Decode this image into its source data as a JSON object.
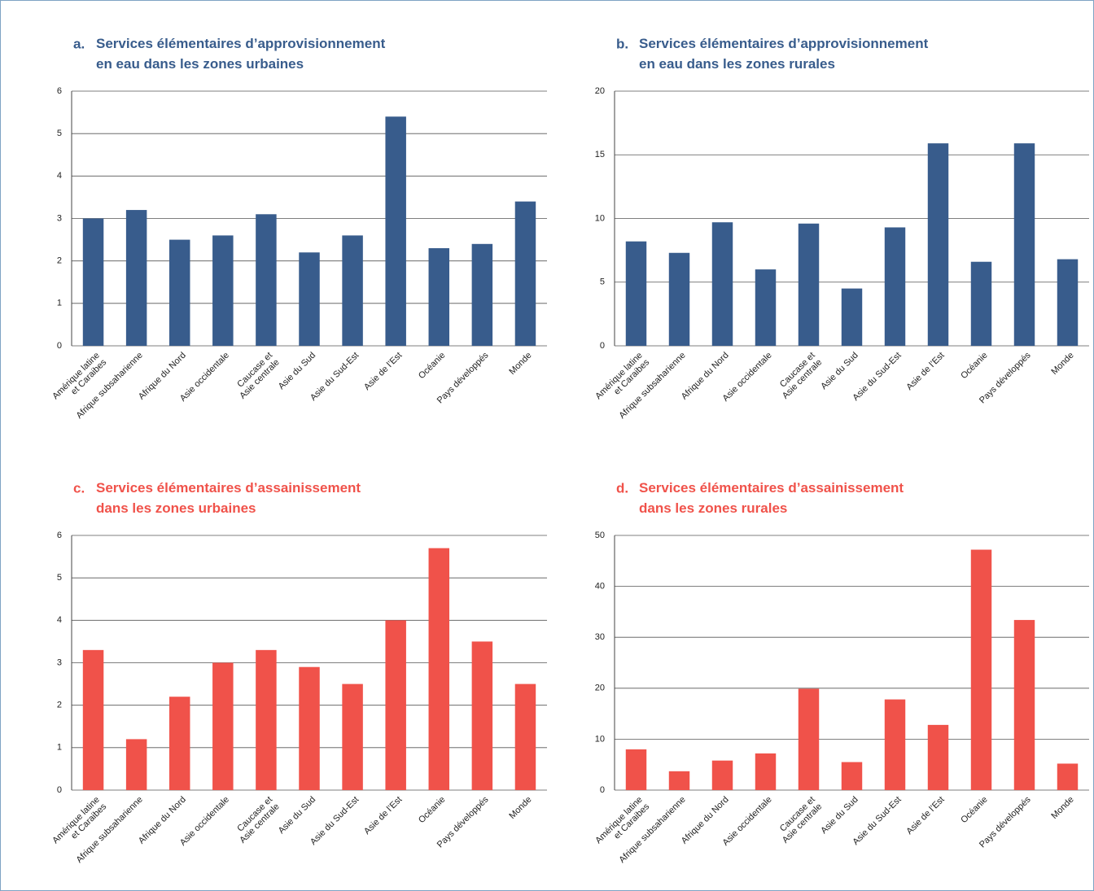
{
  "chart_data": [
    {
      "type": "bar",
      "label": "a.",
      "title": "Services élémentaires d’approvisionnement\nen eau dans les zones urbaines",
      "color": "#385c8c",
      "categories": [
        "Amérique latine\net Caraibes",
        "Afrique subsaharienne",
        "Afrique du Nord",
        "Asie occidentale",
        "Caucase et\nAsie centrale",
        "Asie du Sud",
        "Asie du Sud-Est",
        "Asie de l’Est",
        "Océanie",
        "Pays développés",
        "Monde"
      ],
      "values": [
        3.0,
        3.2,
        2.5,
        2.6,
        3.1,
        2.2,
        2.6,
        5.4,
        2.3,
        2.4,
        3.4
      ],
      "ylim": [
        0,
        6
      ],
      "yticks": [
        0,
        1,
        2,
        3,
        4,
        5,
        6
      ],
      "grid": true
    },
    {
      "type": "bar",
      "label": "b.",
      "title": "Services élémentaires d’approvisionnement\nen eau dans les zones rurales",
      "color": "#385c8c",
      "categories": [
        "Amérique latine\net Caraibes",
        "Afrique subsaharienne",
        "Afrique du Nord",
        "Asie occidentale",
        "Caucase et\nAsie centrale",
        "Asie du Sud",
        "Asie du Sud-Est",
        "Asie de l’Est",
        "Océanie",
        "Pays développés",
        "Monde"
      ],
      "values": [
        8.2,
        7.3,
        9.7,
        6.0,
        9.6,
        4.5,
        9.3,
        15.9,
        6.6,
        15.9,
        6.8
      ],
      "ylim": [
        0,
        20
      ],
      "yticks": [
        0,
        5,
        10,
        15,
        20
      ],
      "grid": true
    },
    {
      "type": "bar",
      "label": "c.",
      "title": "Services élémentaires d’assainissement\ndans les zones urbaines",
      "color": "#f0524a",
      "categories": [
        "Amérique latine\net Caraibes",
        "Afrique subsaharienne",
        "Afrique du Nord",
        "Asie occidentale",
        "Caucase et\nAsie centrale",
        "Asie du Sud",
        "Asie du Sud-Est",
        "Asie de l’Est",
        "Océanie",
        "Pays développés",
        "Monde"
      ],
      "values": [
        3.3,
        1.2,
        2.2,
        3.0,
        3.3,
        2.9,
        2.5,
        4.0,
        5.7,
        3.5,
        2.5
      ],
      "ylim": [
        0,
        6
      ],
      "yticks": [
        0,
        1,
        2,
        3,
        4,
        5,
        6
      ],
      "grid": true
    },
    {
      "type": "bar",
      "label": "d.",
      "title": "Services élémentaires d’assainissement\ndans les zones rurales",
      "color": "#f0524a",
      "categories": [
        "Amérique latine\net Caraibes",
        "Afrique subsaharienne",
        "Afrique du Nord",
        "Asie occidentale",
        "Caucase et\nAsie centrale",
        "Asie du Sud",
        "Asie du Sud-Est",
        "Asie de l’Est",
        "Océanie",
        "Pays développés",
        "Monde"
      ],
      "values": [
        8.0,
        3.7,
        5.8,
        7.2,
        19.9,
        5.5,
        17.8,
        12.8,
        47.2,
        33.4,
        5.2
      ],
      "ylim": [
        0,
        50
      ],
      "yticks": [
        0,
        10,
        20,
        30,
        40,
        50
      ],
      "grid": true
    }
  ]
}
